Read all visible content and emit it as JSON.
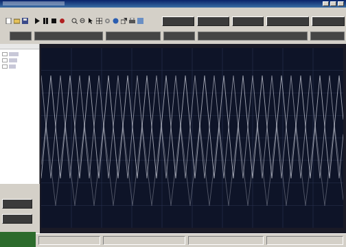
{
  "window": {
    "title": ""
  },
  "menu": {
    "items": [
      "",
      "",
      "",
      "",
      ""
    ]
  },
  "toolbar": {
    "buttons": [
      "",
      "",
      "",
      "",
      ""
    ]
  },
  "strip": {
    "fields": [
      "",
      "",
      "",
      "",
      "",
      ""
    ]
  },
  "side": {
    "buttons": [
      "",
      ""
    ]
  },
  "status": {
    "cells": [
      "",
      "",
      "",
      ""
    ]
  },
  "scope": {
    "trace_color": "#d8dbe6",
    "background": "#0e1428"
  }
}
